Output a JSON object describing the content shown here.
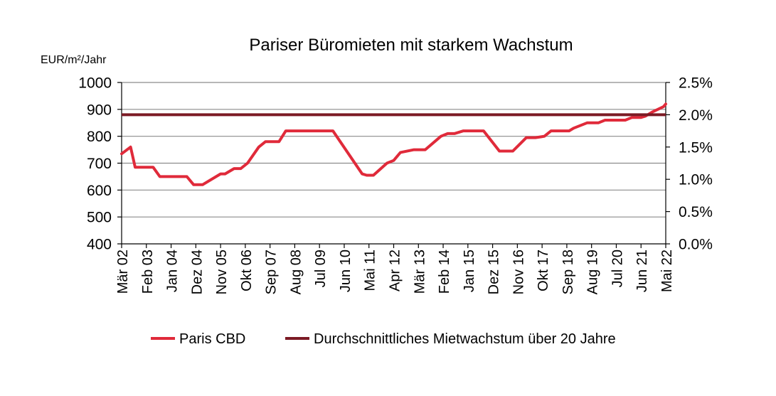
{
  "chart_data": {
    "type": "line",
    "title": "Pariser Büromieten mit starkem Wachstum",
    "ylabel": "EUR/m²/Jahr",
    "ylim": [
      400,
      1000
    ],
    "yticks": [
      400,
      500,
      600,
      700,
      800,
      900,
      1000
    ],
    "y2lim": [
      0.0,
      2.5
    ],
    "y2ticks": [
      "0.0%",
      "0.5%",
      "1.0%",
      "1.5%",
      "2.0%",
      "2.5%"
    ],
    "grid": true,
    "legend_position": "bottom",
    "x_tick_labels": [
      "Mär 02",
      "Feb 03",
      "Jan 04",
      "Dez 04",
      "Nov 05",
      "Okt 06",
      "Sep 07",
      "Aug 08",
      "Jul 09",
      "Jun 10",
      "Mai 11",
      "Apr 12",
      "Mär 13",
      "Feb 14",
      "Jan 15",
      "Dez 15",
      "Nov 16",
      "Okt 17",
      "Sep 18",
      "Aug 19",
      "Jul 20",
      "Jun 21",
      "Mai 22"
    ],
    "x_range_months": [
      0,
      242
    ],
    "series": [
      {
        "name": "Paris CBD",
        "color": "#e02a3a",
        "axis": "left",
        "x_months": [
          0,
          4,
          6,
          14,
          17,
          29,
          32,
          36,
          44,
          46,
          50,
          53,
          56,
          61,
          64,
          70,
          73,
          79,
          82,
          85,
          88,
          91,
          94,
          107,
          109,
          112,
          118,
          121,
          124,
          130,
          135,
          142,
          145,
          148,
          152,
          157,
          161,
          168,
          171,
          174,
          180,
          184,
          188,
          191,
          199,
          201,
          207,
          210,
          212,
          215,
          224,
          227,
          231,
          233,
          236,
          241,
          242
        ],
        "values": [
          735,
          760,
          685,
          685,
          650,
          650,
          620,
          620,
          660,
          660,
          680,
          680,
          700,
          760,
          780,
          780,
          820,
          820,
          820,
          820,
          820,
          820,
          820,
          660,
          655,
          655,
          700,
          710,
          740,
          750,
          750,
          800,
          810,
          810,
          820,
          820,
          820,
          745,
          745,
          745,
          795,
          795,
          800,
          820,
          820,
          830,
          850,
          850,
          850,
          860,
          860,
          870,
          870,
          875,
          890,
          910,
          920
        ]
      },
      {
        "name": "Durchschnittliches Mietwachstum über 20 Jahre",
        "color": "#7b1a24",
        "axis": "right",
        "value_pct": 2.0
      }
    ]
  },
  "legend": {
    "paris": "Paris CBD",
    "avg": "Durchschnittliches Mietwachstum über 20 Jahre"
  }
}
